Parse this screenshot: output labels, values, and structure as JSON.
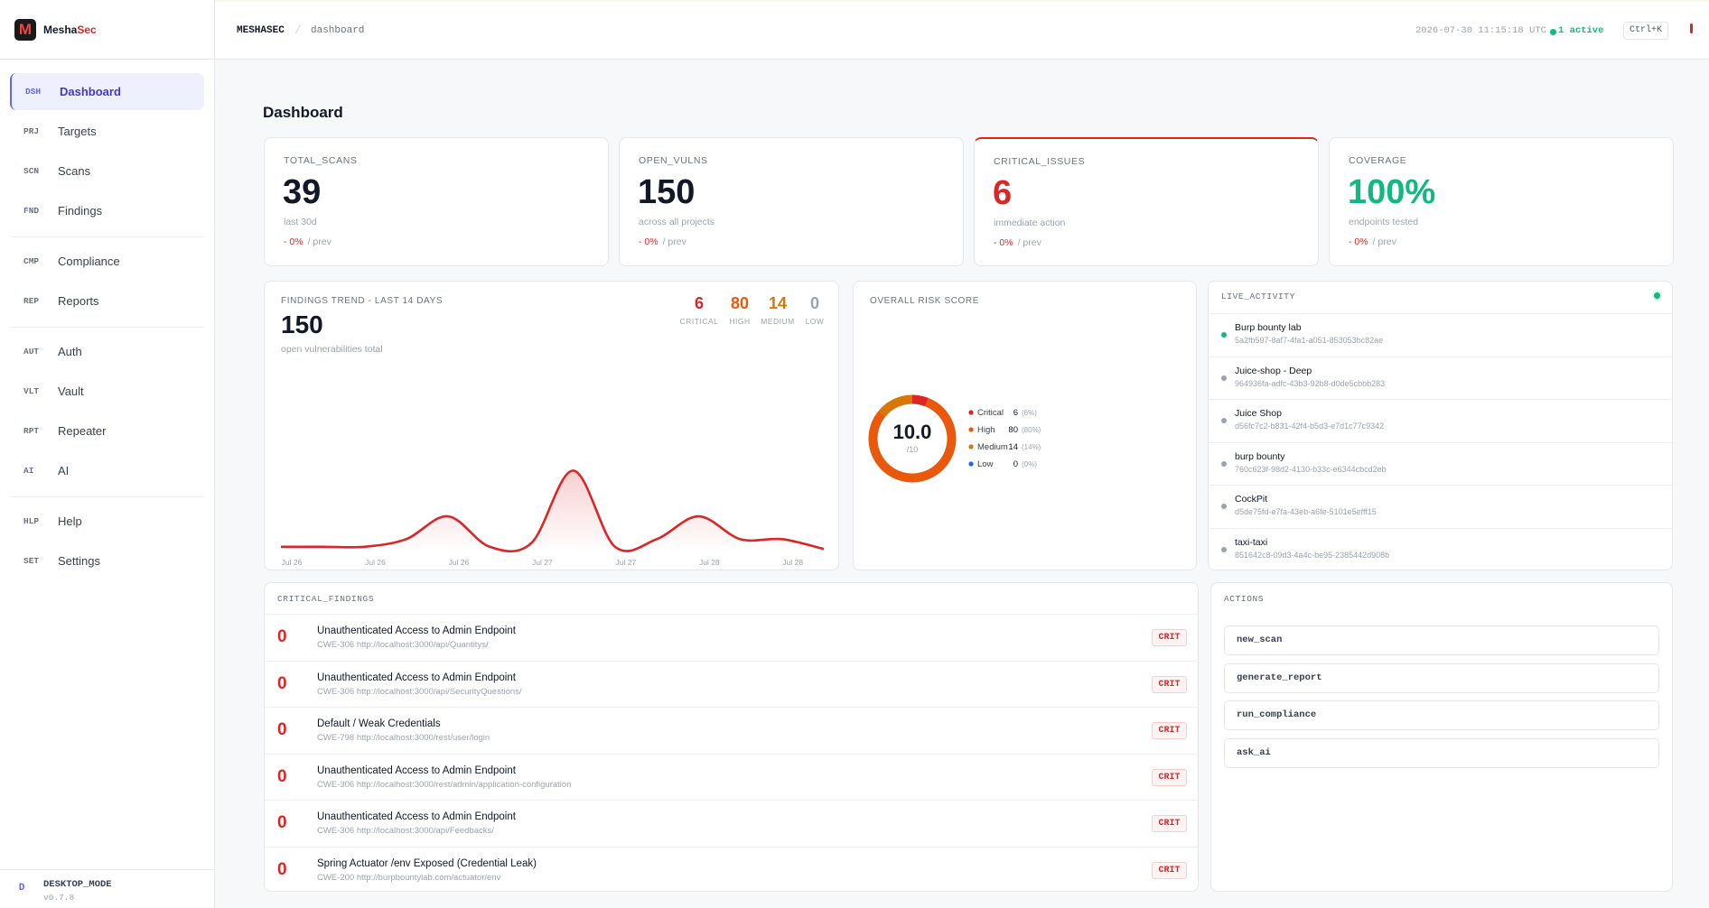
{
  "sidebar": {
    "brand": {
      "logo": "M",
      "name": "Mesha",
      "accent": "Sec"
    },
    "nav": [
      [
        {
          "code": "DSH",
          "label": "Dashboard"
        },
        {
          "code": "PRJ",
          "label": "Targets"
        },
        {
          "code": "SCN",
          "label": "Scans"
        },
        {
          "code": "FND",
          "label": "Findings"
        }
      ],
      [
        {
          "code": "CMP",
          "label": "Compliance"
        },
        {
          "code": "REP",
          "label": "Reports"
        }
      ],
      [
        {
          "code": "AUT",
          "label": "Auth"
        },
        {
          "code": "VLT",
          "label": "Vault"
        },
        {
          "code": "RPT",
          "label": "Repeater"
        },
        {
          "code": "AI",
          "label": "AI"
        }
      ],
      [
        {
          "code": "HLP",
          "label": "Help"
        },
        {
          "code": "SET",
          "label": "Settings"
        }
      ]
    ],
    "footer": {
      "avatar": "D",
      "mode": "DESKTOP_MODE",
      "version": "v0.7.8"
    }
  },
  "topbar": {
    "breadcrumb": [
      "MESHASEC",
      "dashboard"
    ],
    "separator": "/",
    "time": "2026-07-30 11:15:18 UTC",
    "status": "1 active",
    "shortcut": "Ctrl+K"
  },
  "title": "Dashboard",
  "stats": [
    {
      "label": "TOTAL_SCANS",
      "value": 39,
      "note": "last 30d",
      "delta": "- 0%",
      "prev": "/ prev",
      "color": "#111827"
    },
    {
      "label": "OPEN_VULNS",
      "value": 150,
      "note": "across all projects",
      "delta": "- 0%",
      "prev": "/ prev",
      "color": "#111827"
    },
    {
      "label": "CRITICAL_ISSUES",
      "value": 6,
      "note": "immediate action",
      "delta": "- 0%",
      "prev": "/ prev",
      "color": "#dc2626"
    },
    {
      "label": "COVERAGE",
      "value": "100%",
      "note": "endpoints tested",
      "delta": "- 0%",
      "prev": "/ prev",
      "color": "#10b981"
    }
  ],
  "trend": {
    "title": "FINDINGS TREND - LAST 14 DAYS",
    "total": 150,
    "note": "open vulnerabilities total",
    "counts": [
      {
        "value": 6,
        "label": "CRITICAL",
        "color": "#dc2626"
      },
      {
        "value": 80,
        "label": "HIGH",
        "color": "#ea580c"
      },
      {
        "value": 14,
        "label": "MEDIUM",
        "color": "#d97706"
      },
      {
        "value": 0,
        "label": "LOW",
        "color": "#94a3b8"
      }
    ],
    "chart": {
      "type": "line",
      "categories": [
        "Jul 26",
        null,
        "Jul 26",
        null,
        "Jul 26",
        null,
        "Jul 27",
        null,
        "Jul 27",
        null,
        "Jul 28",
        null,
        "Jul 28",
        null
      ],
      "values": [
        0.5,
        0.5,
        0.5,
        1.5,
        4.5,
        0.5,
        1,
        10.5,
        0.5,
        1.5,
        4.5,
        1.5,
        1.5,
        0.2
      ],
      "color": "#dc2626",
      "ylim": [
        0,
        25
      ]
    }
  },
  "risk": {
    "title": "OVERALL RISK SCORE",
    "score": "10.0",
    "max": "/10",
    "chart": {
      "type": "pie",
      "categories": [
        "Critical",
        "High",
        "Medium",
        "Low"
      ],
      "values": [
        6,
        80,
        14,
        0
      ],
      "value_labels": [
        "(6%)",
        "(80%)",
        "(14%)",
        "(0%)"
      ],
      "colors": [
        "#dc2626",
        "#ea580c",
        "#d97706",
        "#2563eb"
      ]
    }
  },
  "live": {
    "title": "LIVE_ACTIVITY",
    "items": [
      {
        "name": "Burp bounty lab",
        "id": "5a2fb597-8af7-4fa1-a051-853053bc82ae"
      },
      {
        "name": "Juice-shop - Deep",
        "id": "964936fa-adfc-43b3-92b8-d0de5cbbb283"
      },
      {
        "name": "Juice Shop",
        "id": "d56fc7c2-b831-42f4-b5d3-e7d1c77c9342"
      },
      {
        "name": "burp bounty",
        "id": "760c623f-98d2-4130-b33c-e6344cbcd2eb"
      },
      {
        "name": "CockPit",
        "id": "d5de75fd-e7fa-43eb-a6fe-5101e5efff15"
      },
      {
        "name": "taxi-taxi",
        "id": "851642c8-09d3-4a4c-be95-2385442d908b"
      }
    ]
  },
  "critical": {
    "title": "CRITICAL_FINDINGS",
    "items": [
      {
        "score": 0,
        "title": "Unauthenticated Access to Admin Endpoint",
        "cwe": "CWE-306",
        "url": "http://localhost:3000/api/Quantitys/",
        "badge": "CRIT"
      },
      {
        "score": 0,
        "title": "Unauthenticated Access to Admin Endpoint",
        "cwe": "CWE-306",
        "url": "http://localhost:3000/api/SecurityQuestions/",
        "badge": "CRIT"
      },
      {
        "score": 0,
        "title": "Default / Weak Credentials",
        "cwe": "CWE-798",
        "url": "http://localhost:3000/rest/user/login",
        "badge": "CRIT"
      },
      {
        "score": 0,
        "title": "Unauthenticated Access to Admin Endpoint",
        "cwe": "CWE-306",
        "url": "http://localhost:3000/rest/admin/application-configuration",
        "badge": "CRIT"
      },
      {
        "score": 0,
        "title": "Unauthenticated Access to Admin Endpoint",
        "cwe": "CWE-306",
        "url": "http://localhost:3000/api/Feedbacks/",
        "badge": "CRIT"
      },
      {
        "score": 0,
        "title": "Spring Actuator /env Exposed (Credential Leak)",
        "cwe": "CWE-200",
        "url": "http://burpbountylab.com/actuator/env",
        "badge": "CRIT"
      }
    ]
  },
  "actions": {
    "title": "ACTIONS",
    "items": [
      "new_scan",
      "generate_report",
      "run_compliance",
      "ask_ai"
    ]
  }
}
